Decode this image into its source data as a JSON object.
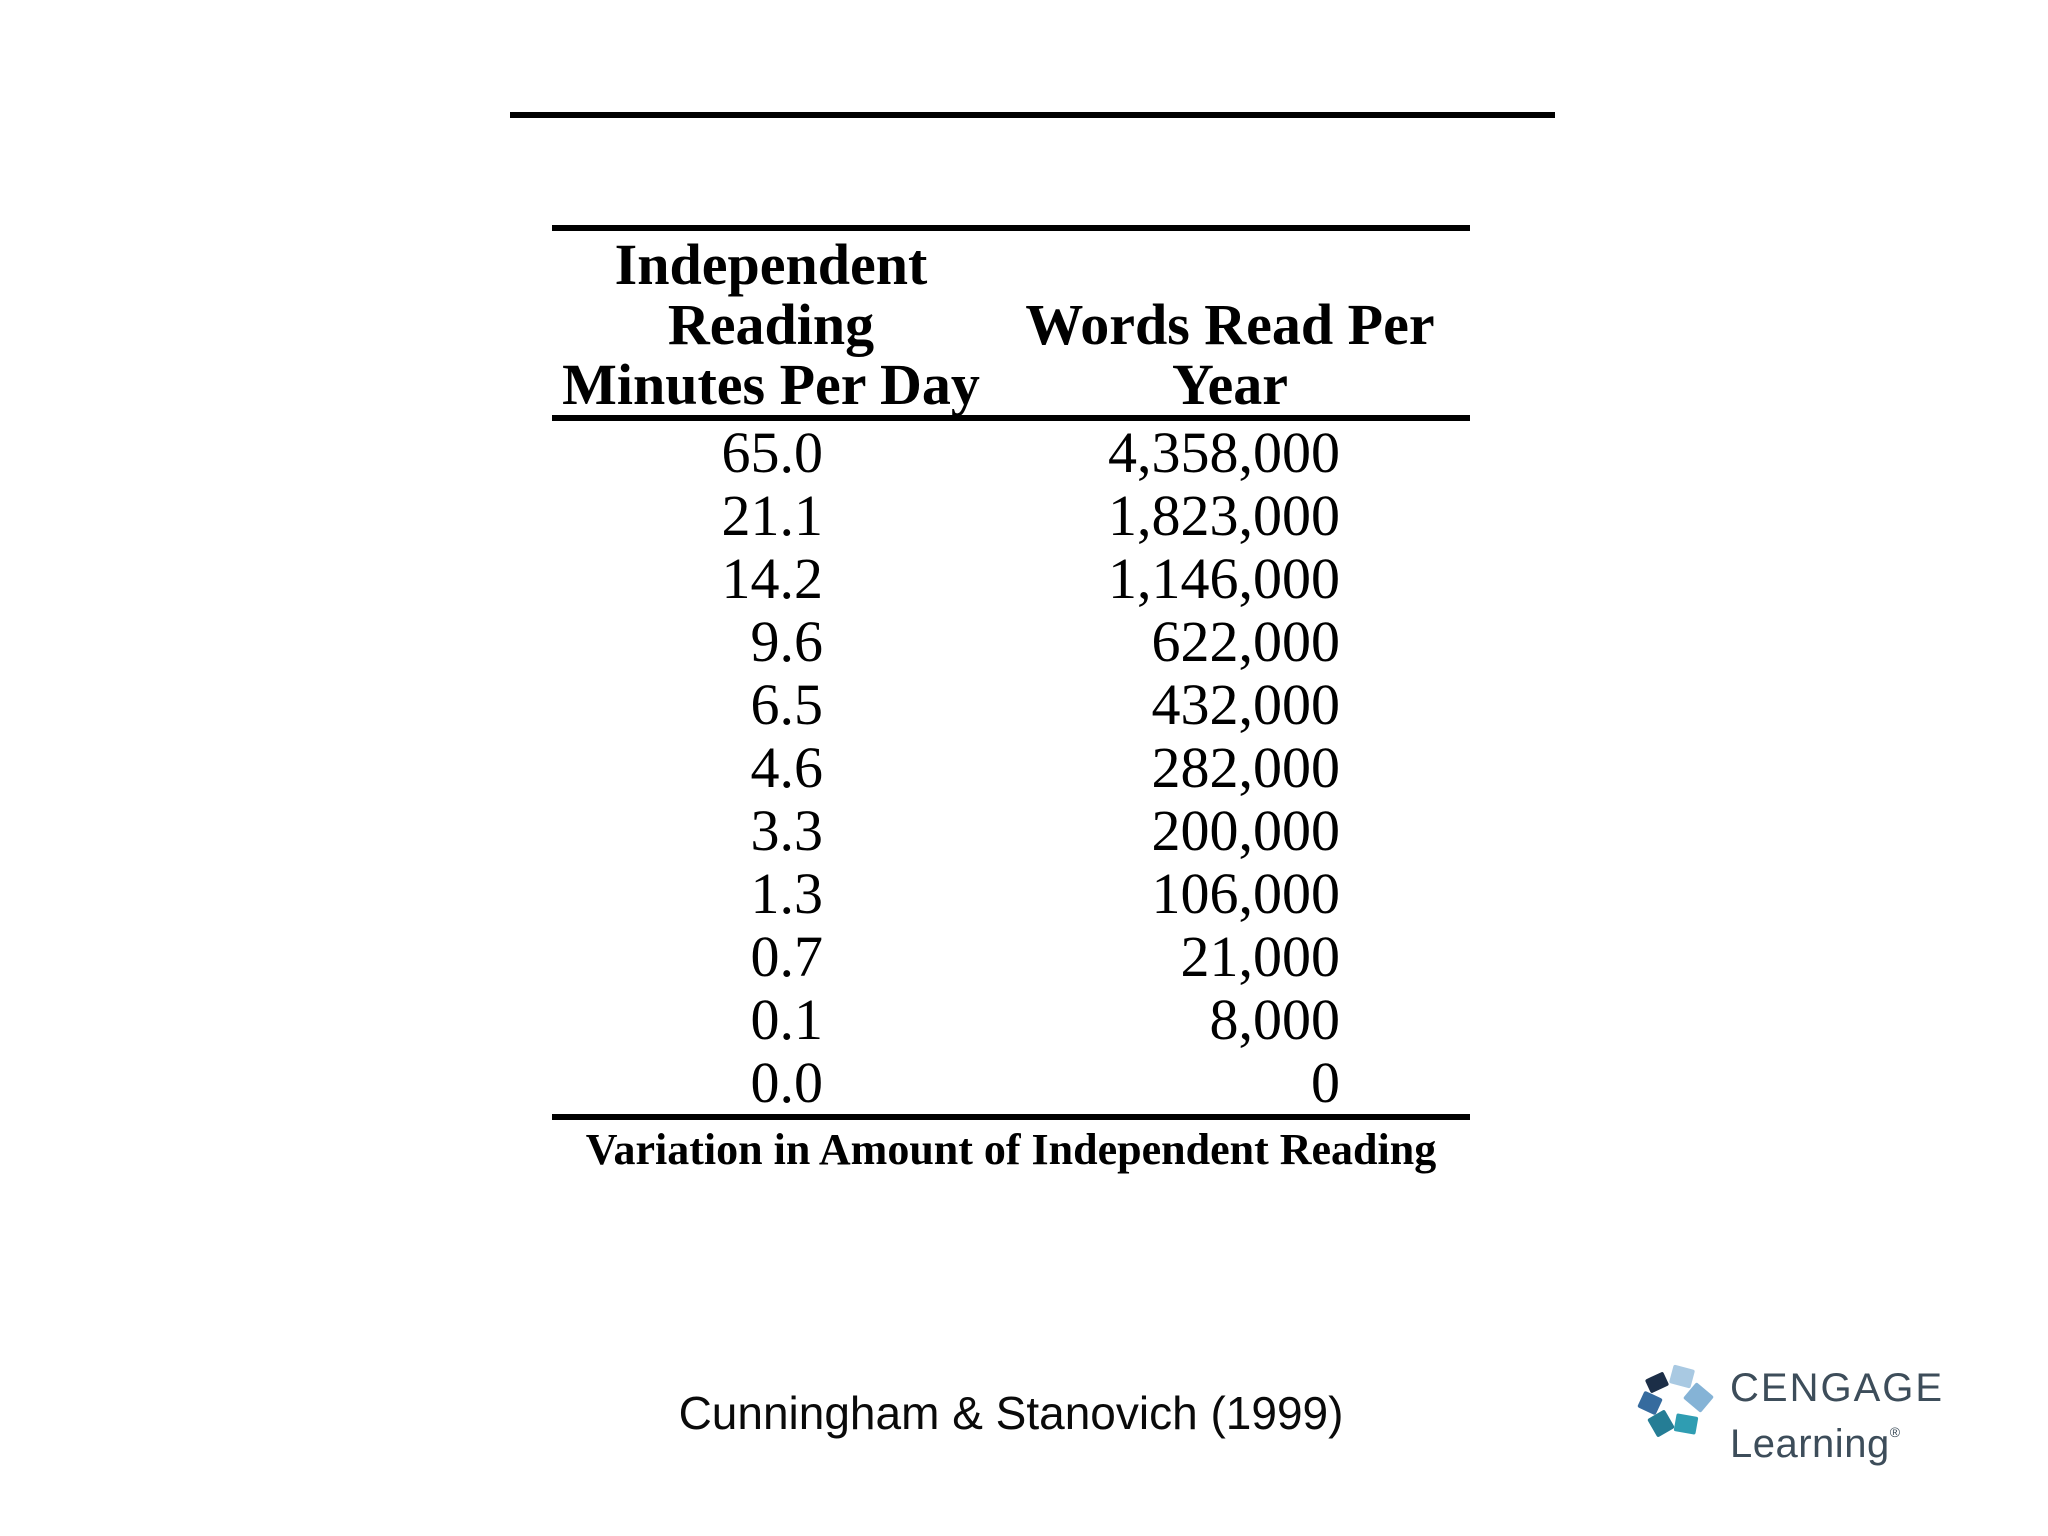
{
  "slide": {
    "background": "#ffffff"
  },
  "table": {
    "header": {
      "col1_lines": [
        "Independent",
        "Reading",
        "Minutes Per Day"
      ],
      "col2_lines": [
        "Words Read Per",
        "Year"
      ]
    },
    "rows": [
      {
        "minutes": "65.0",
        "words": "4,358,000"
      },
      {
        "minutes": "21.1",
        "words": "1,823,000"
      },
      {
        "minutes": "14.2",
        "words": "1,146,000"
      },
      {
        "minutes": "9.6",
        "words": "622,000"
      },
      {
        "minutes": "6.5",
        "words": "432,000"
      },
      {
        "minutes": "4.6",
        "words": "282,000"
      },
      {
        "minutes": "3.3",
        "words": "200,000"
      },
      {
        "minutes": "1.3",
        "words": "106,000"
      },
      {
        "minutes": "0.7",
        "words": "21,000"
      },
      {
        "minutes": "0.1",
        "words": "8,000"
      },
      {
        "minutes": "0.0",
        "words": "0"
      }
    ],
    "caption": "Variation in Amount of Independent Reading"
  },
  "footer": {
    "citation": "Cunningham & Stanovich (1999)"
  },
  "logo": {
    "line1": "CENGAGE",
    "line2": "Learning",
    "registered_mark": "®",
    "text_color": "#3d4d5a",
    "pinwheel_colors": [
      "#1c2e47",
      "#a9c9e2",
      "#85b3d6",
      "#366b9e",
      "#257d95",
      "#2f9db2"
    ]
  },
  "chart_data": {
    "type": "table",
    "columns": [
      "Independent Reading Minutes Per Day",
      "Words Read Per Year"
    ],
    "rows": [
      [
        65.0,
        4358000
      ],
      [
        21.1,
        1823000
      ],
      [
        14.2,
        1146000
      ],
      [
        9.6,
        622000
      ],
      [
        6.5,
        432000
      ],
      [
        4.6,
        282000
      ],
      [
        3.3,
        200000
      ],
      [
        1.3,
        106000
      ],
      [
        0.7,
        21000
      ],
      [
        0.1,
        8000
      ],
      [
        0.0,
        0
      ]
    ],
    "caption": "Variation in Amount of Independent Reading",
    "source": "Cunningham & Stanovich (1999)"
  }
}
